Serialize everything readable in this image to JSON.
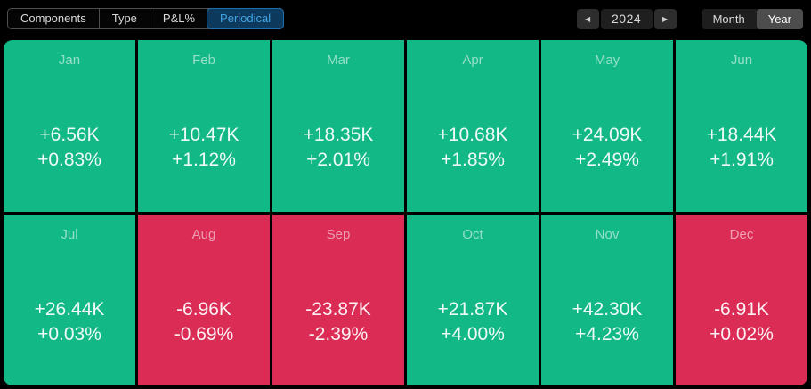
{
  "toolbar": {
    "tabs": [
      {
        "label": "Components",
        "selected": false
      },
      {
        "label": "Type",
        "selected": false
      },
      {
        "label": "P&L%",
        "selected": false
      },
      {
        "label": "Periodical",
        "selected": true
      }
    ],
    "year_nav": {
      "prev_icon": "◀",
      "year": "2024",
      "next_icon": "▶"
    },
    "period_toggle": [
      {
        "label": "Month",
        "selected": false
      },
      {
        "label": "Year",
        "selected": true
      }
    ]
  },
  "months": [
    {
      "label": "Jan",
      "pnl": "+6.56K",
      "pct": "+0.83%",
      "sentiment": "positive"
    },
    {
      "label": "Feb",
      "pnl": "+10.47K",
      "pct": "+1.12%",
      "sentiment": "positive"
    },
    {
      "label": "Mar",
      "pnl": "+18.35K",
      "pct": "+2.01%",
      "sentiment": "positive"
    },
    {
      "label": "Apr",
      "pnl": "+10.68K",
      "pct": "+1.85%",
      "sentiment": "positive"
    },
    {
      "label": "May",
      "pnl": "+24.09K",
      "pct": "+2.49%",
      "sentiment": "positive"
    },
    {
      "label": "Jun",
      "pnl": "+18.44K",
      "pct": "+1.91%",
      "sentiment": "positive"
    },
    {
      "label": "Jul",
      "pnl": "+26.44K",
      "pct": "+0.03%",
      "sentiment": "positive"
    },
    {
      "label": "Aug",
      "pnl": "-6.96K",
      "pct": "-0.69%",
      "sentiment": "negative"
    },
    {
      "label": "Sep",
      "pnl": "-23.87K",
      "pct": "-2.39%",
      "sentiment": "negative"
    },
    {
      "label": "Oct",
      "pnl": "+21.87K",
      "pct": "+4.00%",
      "sentiment": "positive"
    },
    {
      "label": "Nov",
      "pnl": "+42.30K",
      "pct": "+4.23%",
      "sentiment": "positive"
    },
    {
      "label": "Dec",
      "pnl": "-6.91K",
      "pct": "+0.02%",
      "sentiment": "negative"
    }
  ],
  "colors": {
    "positive": "#12b886",
    "negative": "#da2c55",
    "selected_tab_bg": "#0d3a5c",
    "selected_tab_text": "#41a4e6",
    "selected_tab_border": "#1d6fad"
  },
  "chart_data": {
    "type": "heatmap",
    "title": "Periodical P&L by month — 2024",
    "categories": [
      "Jan",
      "Feb",
      "Mar",
      "Apr",
      "May",
      "Jun",
      "Jul",
      "Aug",
      "Sep",
      "Oct",
      "Nov",
      "Dec"
    ],
    "series": [
      {
        "name": "P&L",
        "values": [
          6560,
          10470,
          18350,
          10680,
          24090,
          18440,
          26440,
          -6960,
          -23870,
          21870,
          42300,
          -6910
        ]
      },
      {
        "name": "P&L %",
        "values": [
          0.83,
          1.12,
          2.01,
          1.85,
          2.49,
          1.91,
          0.03,
          -0.69,
          -2.39,
          4.0,
          4.23,
          0.02
        ]
      }
    ],
    "legend_position": "none",
    "grid": false
  }
}
